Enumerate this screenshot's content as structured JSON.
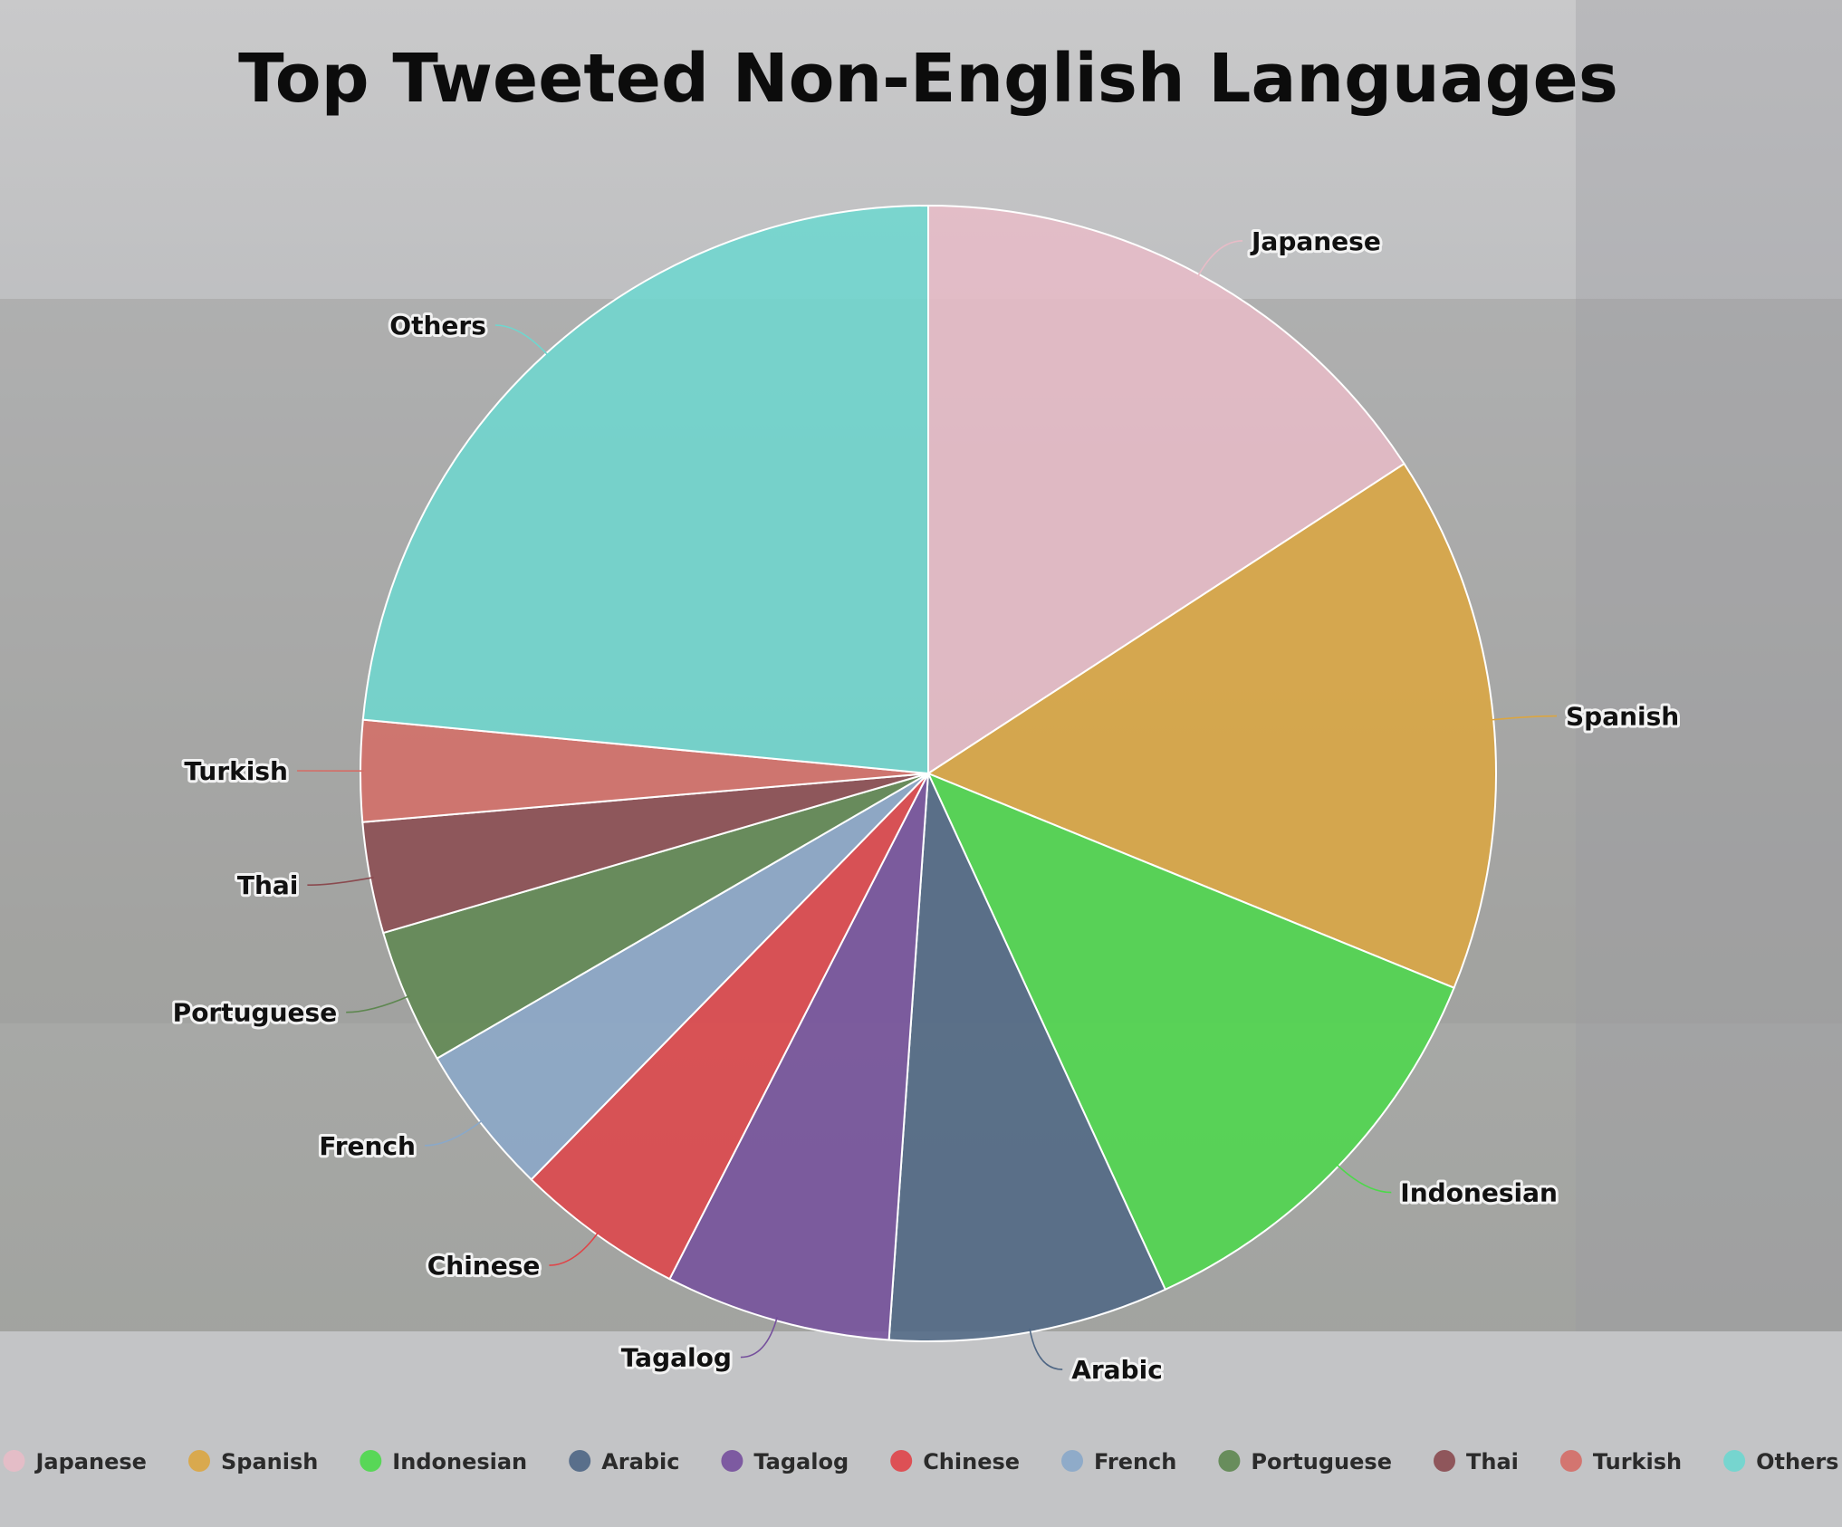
{
  "chart_data": {
    "type": "pie",
    "title": "Top Tweeted Non-English Languages",
    "categories": [
      "Japanese",
      "Spanish",
      "Indonesian",
      "Arabic",
      "Tagalog",
      "Chinese",
      "French",
      "Portuguese",
      "Thai",
      "Turkish",
      "Others"
    ],
    "values": [
      16.5,
      16.0,
      12.5,
      8.3,
      6.7,
      5.0,
      4.5,
      4.0,
      3.3,
      3.0,
      24.5
    ],
    "colors": [
      "#e8bcc7",
      "#dca640",
      "#4cd94a",
      "#4e6684",
      "#754f9c",
      "#e04448",
      "#8aa8c9",
      "#5e8750",
      "#8a4a4f",
      "#d56d66",
      "#6ed7cf"
    ],
    "legend_position": "bottom"
  }
}
